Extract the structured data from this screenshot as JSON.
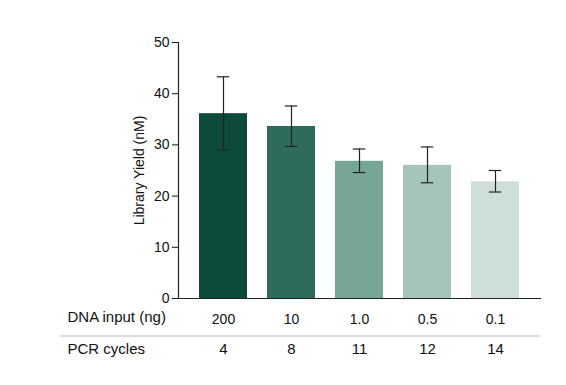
{
  "chart_data": {
    "type": "bar",
    "categories": [
      "200",
      "10",
      "1.0",
      "0.5",
      "0.1"
    ],
    "values": [
      36.1,
      33.6,
      26.8,
      26.0,
      22.8
    ],
    "error_low": [
      29.0,
      29.7,
      24.6,
      22.6,
      20.8
    ],
    "error_high": [
      43.3,
      37.6,
      29.2,
      29.6,
      25.0
    ],
    "colors": [
      "#0d4a3c",
      "#2f6b5b",
      "#77a596",
      "#a5c4ba",
      "#cddfd8"
    ],
    "x_label": "DNA input (ng)",
    "secondary_row": {
      "label": "PCR cycles",
      "values": [
        4,
        8,
        11,
        12,
        14
      ]
    },
    "y_label": "Library Yield (nM)",
    "ylim": [
      0,
      50
    ],
    "yticks": [
      0,
      10,
      20,
      30,
      40,
      50
    ],
    "grid": false
  }
}
